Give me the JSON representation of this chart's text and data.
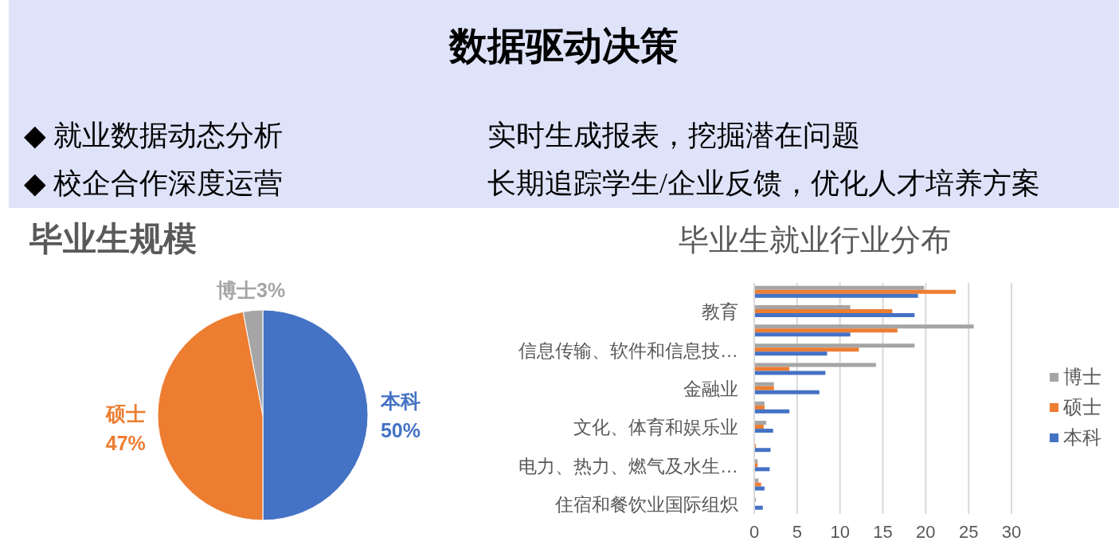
{
  "chart_data": [
    {
      "type": "other",
      "title": "数据驱动决策",
      "annotations": [
        "◆ 就业数据动态分析",
        "实时生成报表，挖掘潜在问题",
        "◆ 校企合作深度运营",
        "长期追踪学生/企业反馈，优化人才培养方案"
      ]
    },
    {
      "type": "pie",
      "title": "毕业生规模",
      "categories": [
        "本科",
        "硕士",
        "博士"
      ],
      "values": [
        50,
        47,
        3
      ],
      "colors": [
        "#4472c4",
        "#ed7d31",
        "#a5a5a5"
      ],
      "value_labels": [
        "50%",
        "47%",
        "3%"
      ]
    },
    {
      "type": "bar",
      "orientation": "horizontal",
      "title": "毕业生就业行业分布",
      "categories": [
        null,
        "教育",
        null,
        "信息传输、软件和信息技…",
        null,
        "金融业",
        null,
        "文化、体育和娱乐业",
        null,
        "电力、热力、燃气及水生…",
        null,
        "住宿和餐饮业国际组炽"
      ],
      "series": [
        {
          "name": "博士",
          "color": "#a5a5a5",
          "values": [
            19.8,
            11.2,
            25.6,
            18.7,
            14.2,
            2.3,
            1.2,
            1.4,
            0,
            0.4,
            0.5,
            0.2
          ]
        },
        {
          "name": "硕士",
          "color": "#ed7d31",
          "values": [
            23.5,
            16.1,
            16.7,
            12.2,
            4.1,
            2.3,
            1.2,
            1.1,
            0.2,
            0.4,
            0.8,
            0
          ]
        },
        {
          "name": "本科",
          "color": "#4472c4",
          "values": [
            19.1,
            18.7,
            11.2,
            8.5,
            8.3,
            7.6,
            4.1,
            2.2,
            1.9,
            1.8,
            1.2,
            1.0
          ]
        }
      ],
      "xlim": [
        0,
        30
      ],
      "xticks": [
        0,
        5,
        10,
        15,
        20,
        25,
        30
      ],
      "grid": "x",
      "legend": "right"
    }
  ]
}
